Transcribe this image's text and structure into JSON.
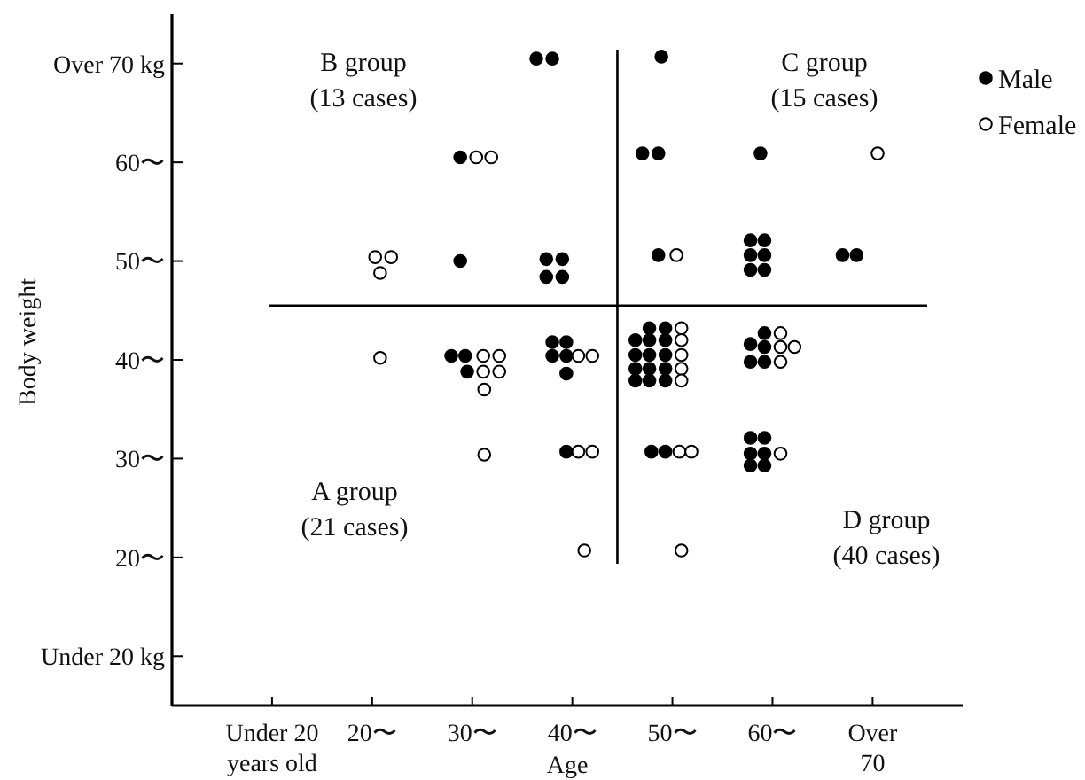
{
  "chart_data": {
    "type": "scatter",
    "xlabel": "Age",
    "ylabel": "Body weight",
    "xlim": [
      0,
      79
    ],
    "ylim": [
      5,
      75
    ],
    "xticks": [
      {
        "value": 10,
        "label": "Under 20\nyears old"
      },
      {
        "value": 20,
        "label": "20〜"
      },
      {
        "value": 30,
        "label": "30〜"
      },
      {
        "value": 40,
        "label": "40〜"
      },
      {
        "value": 50,
        "label": "50〜"
      },
      {
        "value": 60,
        "label": "60〜"
      },
      {
        "value": 70,
        "label": "Over\n70"
      }
    ],
    "yticks": [
      {
        "value": 10,
        "label": "Under 20 kg"
      },
      {
        "value": 20,
        "label": "20〜"
      },
      {
        "value": 30,
        "label": "30〜"
      },
      {
        "value": 40,
        "label": "40〜"
      },
      {
        "value": 50,
        "label": "50〜"
      },
      {
        "value": 60,
        "label": "60〜"
      },
      {
        "value": 70,
        "label": "Over 70 kg"
      }
    ],
    "grid": false,
    "legend": "top right",
    "marker": "circle",
    "ref_lines": [
      {
        "axis": "x",
        "value": 44.5
      },
      {
        "axis": "y",
        "value": 45.5
      }
    ],
    "annotations": [
      "B group\n(13 cases)",
      "C group\n(15 cases)",
      "A group\n(21 cases)",
      "D group\n(40 cases)"
    ],
    "series": [
      {
        "name": "Male",
        "color": "#000000",
        "x": [
          36.4,
          38.0,
          28.8,
          28.8,
          37.4,
          39.0,
          37.4,
          39.0,
          48.9,
          47.0,
          48.6,
          58.8,
          48.6,
          57.8,
          59.2,
          57.8,
          59.2,
          57.8,
          59.2,
          67.0,
          68.4,
          27.9,
          29.3,
          29.5,
          38.0,
          39.4,
          38.0,
          39.4,
          39.4,
          39.4,
          47.7,
          49.3,
          46.3,
          47.7,
          49.3,
          46.3,
          47.7,
          49.3,
          46.3,
          47.7,
          49.3,
          46.3,
          47.7,
          49.3,
          47.9,
          49.3,
          59.2,
          57.8,
          59.2,
          57.8,
          59.2,
          57.8,
          59.2,
          57.8,
          59.2,
          57.8,
          59.2
        ],
        "values": [
          70.5,
          70.5,
          60.5,
          50.0,
          50.2,
          50.2,
          48.4,
          48.4,
          70.7,
          60.9,
          60.9,
          60.9,
          50.6,
          52.1,
          52.1,
          50.6,
          50.6,
          49.1,
          49.1,
          50.6,
          50.6,
          40.4,
          40.4,
          38.8,
          41.8,
          41.8,
          40.4,
          40.4,
          38.6,
          30.7,
          43.2,
          43.2,
          42.0,
          42.0,
          42.0,
          40.5,
          40.5,
          40.5,
          39.1,
          39.1,
          39.1,
          37.9,
          37.9,
          37.9,
          30.7,
          30.7,
          42.7,
          41.6,
          41.3,
          39.8,
          39.8,
          32.1,
          32.1,
          30.5,
          30.5,
          29.3,
          29.3
        ]
      },
      {
        "name": "Female",
        "color": "#ffffff",
        "x": [
          30.4,
          31.9,
          20.3,
          21.9,
          20.8,
          50.4,
          70.5,
          20.8,
          31.1,
          32.7,
          31.1,
          32.7,
          31.2,
          31.2,
          40.6,
          42.0,
          40.6,
          42.0,
          41.2,
          50.9,
          50.9,
          50.9,
          50.9,
          50.9,
          50.7,
          51.9,
          50.9,
          60.8,
          60.8,
          62.2,
          60.8,
          60.8
        ],
        "values": [
          60.5,
          60.5,
          50.4,
          50.4,
          48.8,
          50.6,
          60.9,
          40.2,
          40.4,
          40.4,
          38.8,
          38.8,
          37.0,
          30.4,
          40.4,
          40.4,
          30.7,
          30.7,
          20.7,
          43.2,
          42.0,
          40.5,
          39.1,
          37.9,
          30.7,
          30.7,
          20.7,
          42.7,
          41.3,
          41.3,
          39.8,
          30.5
        ]
      }
    ]
  }
}
